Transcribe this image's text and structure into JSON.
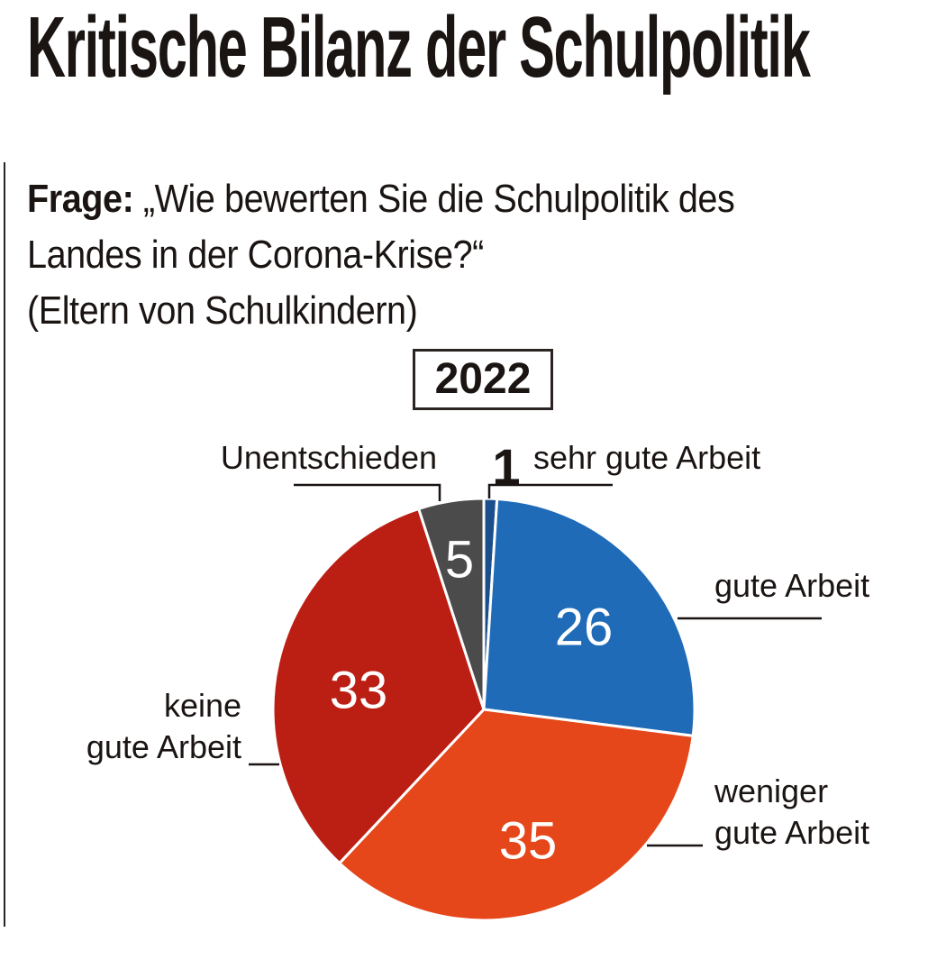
{
  "headline": "Kritische Bilanz der Schulpolitik",
  "question": {
    "label": "Frage:",
    "line1": "„Wie bewerten Sie die Schulpolitik des",
    "line2": "Landes in der Corona-Krise?“",
    "line3": "(Eltern von Schulkindern)"
  },
  "chart_data": {
    "type": "pie",
    "title": "2022",
    "slices": [
      {
        "label": "sehr gute Arbeit",
        "value": 1,
        "color": "#1b4f8c",
        "label_lines": [
          "sehr gute Arbeit"
        ]
      },
      {
        "label": "gute Arbeit",
        "value": 26,
        "color": "#1f6bb8",
        "label_lines": [
          "gute Arbeit"
        ]
      },
      {
        "label": "weniger gute Arbeit",
        "value": 35,
        "color": "#e6471a",
        "label_lines": [
          "weniger",
          "gute Arbeit"
        ]
      },
      {
        "label": "keine gute Arbeit",
        "value": 33,
        "color": "#bb1f14",
        "label_lines": [
          "keine",
          "gute Arbeit"
        ]
      },
      {
        "label": "Unentschieden",
        "value": 5,
        "color": "#4b4b4b",
        "label_lines": [
          "Unentschieden"
        ]
      }
    ]
  }
}
